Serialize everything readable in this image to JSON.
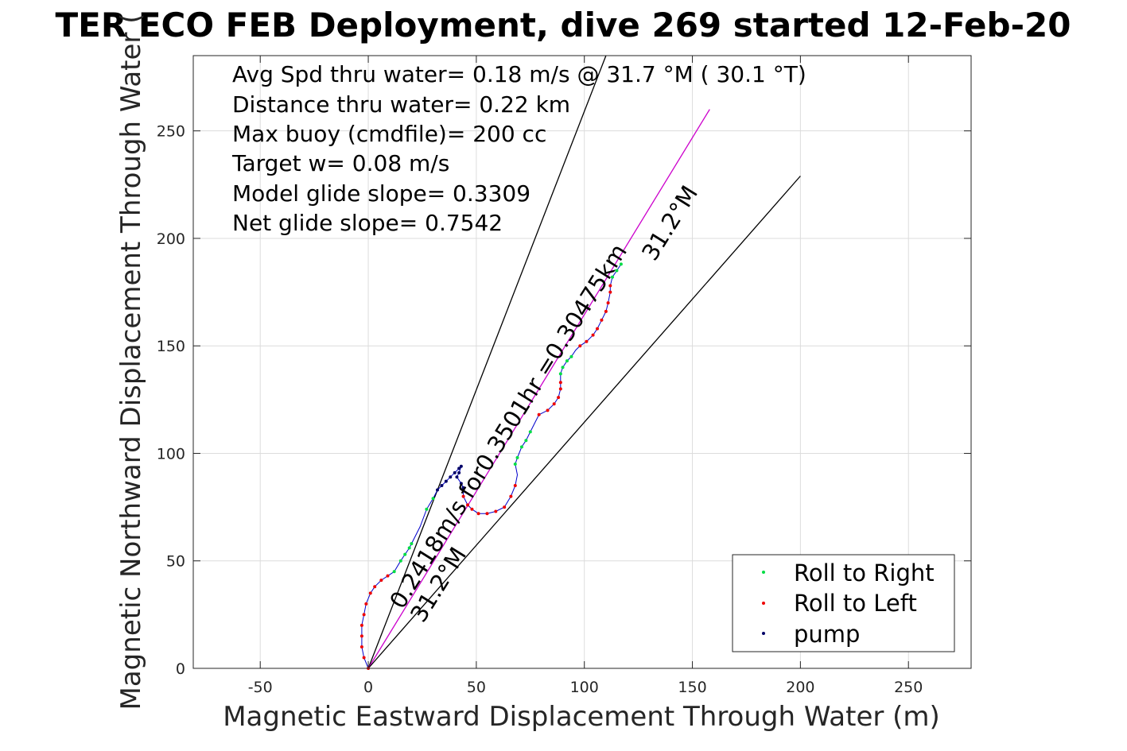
{
  "chart_data": {
    "type": "scatter",
    "title": "TER ECO FEB Deployment, dive 269 started 12-Feb-20",
    "xlabel": "Magnetic Eastward Displacement Through Water (m)",
    "ylabel": "Magnetic Northward Displacement Through Water (",
    "xlim": [
      -81,
      279
    ],
    "ylim": [
      0,
      285
    ],
    "xticks": [
      -50,
      0,
      50,
      100,
      150,
      200,
      250
    ],
    "yticks": [
      0,
      50,
      100,
      150,
      200,
      250
    ],
    "xtick_labels": [
      "-50",
      "0",
      "50",
      "100",
      "150",
      "200",
      "250"
    ],
    "ytick_labels": [
      "0",
      "50",
      "100",
      "150",
      "200",
      "250"
    ],
    "grid": true,
    "legend_position": "bottom-right",
    "annotations": [
      "Avg Spd thru water=  0.18 m/s @  31.7 °M ( 30.1 °T)",
      "Distance thru water=  0.22 km",
      "Max buoy (cmdfile)= 200 cc",
      "Target w= 0.08 m/s",
      "Model glide slope= 0.3309",
      "Net glide slope= 0.7542"
    ],
    "rotated_labels": {
      "speed_line": "0.2418m/s for0.3501hr =0.30475km",
      "heading_near": "31.2°M",
      "heading_far": "31.2°M"
    },
    "reference_lines": [
      {
        "from": [
          0,
          0
        ],
        "to": [
          110,
          285
        ],
        "color": "#000000"
      },
      {
        "from": [
          0,
          0
        ],
        "to": [
          158,
          260
        ],
        "color": "#cc00cc"
      },
      {
        "from": [
          0,
          0
        ],
        "to": [
          200,
          229
        ],
        "color": "#000000"
      }
    ],
    "series": [
      {
        "name": "Roll to Right",
        "color": "#00dd44",
        "values": [
          [
            12,
            45
          ],
          [
            15,
            50
          ],
          [
            17,
            53
          ],
          [
            19,
            56
          ],
          [
            20,
            58
          ],
          [
            27,
            74
          ],
          [
            30,
            79
          ],
          [
            68,
            95
          ],
          [
            69,
            98
          ],
          [
            71,
            103
          ],
          [
            73,
            106
          ],
          [
            75,
            110
          ],
          [
            89,
            137
          ],
          [
            90,
            140
          ],
          [
            92,
            143
          ],
          [
            94,
            145
          ],
          [
            113,
            182
          ],
          [
            115,
            185
          ],
          [
            117,
            188
          ]
        ]
      },
      {
        "name": "Roll to Left",
        "color": "#ee0000",
        "values": [
          [
            0,
            0
          ],
          [
            -2,
            5
          ],
          [
            -3,
            10
          ],
          [
            -3,
            15
          ],
          [
            -3,
            20
          ],
          [
            -2,
            25
          ],
          [
            -1,
            30
          ],
          [
            1,
            35
          ],
          [
            3,
            38
          ],
          [
            6,
            41
          ],
          [
            9,
            43
          ],
          [
            44,
            80
          ],
          [
            46,
            76
          ],
          [
            48,
            74
          ],
          [
            51,
            72
          ],
          [
            55,
            72
          ],
          [
            59,
            73
          ],
          [
            63,
            75
          ],
          [
            66,
            80
          ],
          [
            68,
            85
          ],
          [
            79,
            118
          ],
          [
            83,
            120
          ],
          [
            86,
            123
          ],
          [
            88,
            126
          ],
          [
            89,
            130
          ],
          [
            89,
            133
          ],
          [
            98,
            150
          ],
          [
            101,
            152
          ],
          [
            104,
            155
          ],
          [
            106,
            158
          ],
          [
            108,
            162
          ],
          [
            110,
            166
          ],
          [
            111,
            170
          ],
          [
            112,
            175
          ],
          [
            112,
            178
          ]
        ]
      },
      {
        "name": "pump",
        "color": "#000066",
        "values": [
          [
            32,
            83
          ],
          [
            34,
            85
          ],
          [
            36,
            87
          ],
          [
            38,
            89
          ],
          [
            40,
            91
          ],
          [
            42,
            93
          ],
          [
            43,
            94
          ],
          [
            42,
            91
          ],
          [
            41,
            89
          ],
          [
            43,
            86
          ],
          [
            44,
            84
          ]
        ]
      }
    ],
    "track": [
      [
        0,
        0
      ],
      [
        -2,
        5
      ],
      [
        -3,
        10
      ],
      [
        -3,
        15
      ],
      [
        -3,
        20
      ],
      [
        -2,
        25
      ],
      [
        -1,
        30
      ],
      [
        1,
        35
      ],
      [
        3,
        38
      ],
      [
        6,
        41
      ],
      [
        9,
        43
      ],
      [
        12,
        45
      ],
      [
        15,
        50
      ],
      [
        17,
        53
      ],
      [
        19,
        56
      ],
      [
        20,
        58
      ],
      [
        24,
        66
      ],
      [
        27,
        74
      ],
      [
        30,
        79
      ],
      [
        32,
        83
      ],
      [
        34,
        85
      ],
      [
        36,
        87
      ],
      [
        38,
        89
      ],
      [
        40,
        91
      ],
      [
        42,
        93
      ],
      [
        43,
        94
      ],
      [
        42,
        91
      ],
      [
        41,
        89
      ],
      [
        43,
        86
      ],
      [
        44,
        84
      ],
      [
        44,
        80
      ],
      [
        46,
        76
      ],
      [
        48,
        74
      ],
      [
        51,
        72
      ],
      [
        55,
        72
      ],
      [
        59,
        73
      ],
      [
        63,
        75
      ],
      [
        66,
        80
      ],
      [
        68,
        85
      ],
      [
        69,
        90
      ],
      [
        68,
        95
      ],
      [
        69,
        98
      ],
      [
        71,
        103
      ],
      [
        73,
        106
      ],
      [
        75,
        110
      ],
      [
        77,
        114
      ],
      [
        79,
        118
      ],
      [
        83,
        120
      ],
      [
        86,
        123
      ],
      [
        88,
        126
      ],
      [
        89,
        130
      ],
      [
        89,
        133
      ],
      [
        89,
        137
      ],
      [
        90,
        140
      ],
      [
        92,
        143
      ],
      [
        94,
        145
      ],
      [
        96,
        148
      ],
      [
        98,
        150
      ],
      [
        101,
        152
      ],
      [
        104,
        155
      ],
      [
        106,
        158
      ],
      [
        108,
        162
      ],
      [
        110,
        166
      ],
      [
        111,
        170
      ],
      [
        112,
        175
      ],
      [
        112,
        178
      ],
      [
        113,
        182
      ],
      [
        115,
        185
      ],
      [
        117,
        188
      ]
    ]
  }
}
